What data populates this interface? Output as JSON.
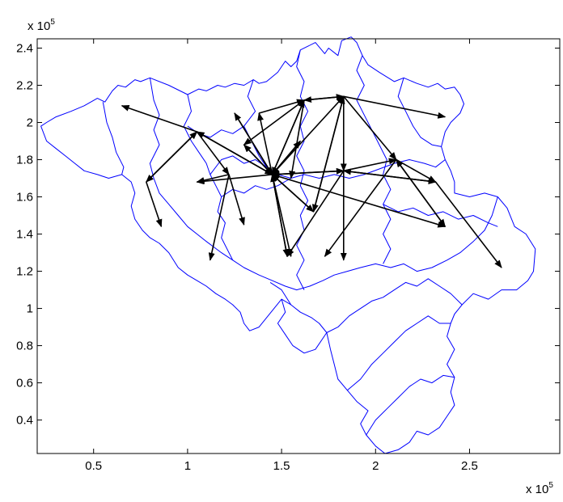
{
  "chart_data": {
    "type": "map-arrows",
    "title": "",
    "xlabel": "",
    "ylabel": "",
    "x_multiplier_label": "x 10",
    "x_multiplier_exp": "5",
    "y_multiplier_label": "x 10",
    "y_multiplier_exp": "5",
    "xlim": [
      0.2,
      2.98
    ],
    "ylim": [
      0.22,
      2.45
    ],
    "xticks": [
      0.5,
      1,
      1.5,
      2,
      2.5
    ],
    "xtick_labels": [
      "0.5",
      "1",
      "1.5",
      "2",
      "2.5"
    ],
    "yticks": [
      0.4,
      0.6,
      0.8,
      1,
      1.2,
      1.4,
      1.6,
      1.8,
      2,
      2.2,
      2.4
    ],
    "ytick_labels": [
      "0.4",
      "0.6",
      "0.8",
      "1",
      "1.2",
      "1.4",
      "1.6",
      "1.8",
      "2",
      "2.2",
      "2.4"
    ],
    "grid": false,
    "boundary_color": "#0000ff",
    "arrow_color": "#000000",
    "boundary_outline": [
      [
        0.22,
        1.98
      ],
      [
        0.25,
        2.0
      ],
      [
        0.3,
        2.03
      ],
      [
        0.38,
        2.06
      ],
      [
        0.45,
        2.09
      ],
      [
        0.52,
        2.13
      ],
      [
        0.56,
        2.11
      ],
      [
        0.6,
        2.17
      ],
      [
        0.63,
        2.2
      ],
      [
        0.67,
        2.19
      ],
      [
        0.72,
        2.23
      ],
      [
        0.75,
        2.22
      ],
      [
        0.8,
        2.24
      ],
      [
        0.9,
        2.2
      ],
      [
        1.0,
        2.15
      ],
      [
        1.06,
        2.18
      ],
      [
        1.1,
        2.17
      ],
      [
        1.16,
        2.2
      ],
      [
        1.2,
        2.19
      ],
      [
        1.25,
        2.21
      ],
      [
        1.3,
        2.2
      ],
      [
        1.35,
        2.23
      ],
      [
        1.38,
        2.21
      ],
      [
        1.42,
        2.22
      ],
      [
        1.48,
        2.27
      ],
      [
        1.52,
        2.33
      ],
      [
        1.55,
        2.3
      ],
      [
        1.58,
        2.33
      ],
      [
        1.6,
        2.39
      ],
      [
        1.64,
        2.41
      ],
      [
        1.68,
        2.43
      ],
      [
        1.73,
        2.37
      ],
      [
        1.75,
        2.4
      ],
      [
        1.8,
        2.36
      ],
      [
        1.82,
        2.44
      ],
      [
        1.87,
        2.46
      ],
      [
        1.9,
        2.43
      ],
      [
        1.93,
        2.36
      ],
      [
        1.96,
        2.31
      ],
      [
        2.02,
        2.27
      ],
      [
        2.1,
        2.22
      ],
      [
        2.15,
        2.24
      ],
      [
        2.22,
        2.21
      ],
      [
        2.28,
        2.19
      ],
      [
        2.33,
        2.21
      ],
      [
        2.37,
        2.18
      ],
      [
        2.42,
        2.19
      ],
      [
        2.45,
        2.15
      ],
      [
        2.47,
        2.1
      ],
      [
        2.45,
        2.05
      ],
      [
        2.4,
        2.0
      ],
      [
        2.37,
        1.95
      ],
      [
        2.35,
        1.87
      ],
      [
        2.37,
        1.8
      ],
      [
        2.4,
        1.74
      ],
      [
        2.42,
        1.68
      ],
      [
        2.42,
        1.62
      ],
      [
        2.5,
        1.6
      ],
      [
        2.58,
        1.62
      ],
      [
        2.65,
        1.6
      ],
      [
        2.7,
        1.54
      ],
      [
        2.74,
        1.44
      ],
      [
        2.8,
        1.4
      ],
      [
        2.85,
        1.32
      ],
      [
        2.84,
        1.2
      ],
      [
        2.81,
        1.15
      ],
      [
        2.75,
        1.1
      ],
      [
        2.67,
        1.1
      ],
      [
        2.6,
        1.05
      ],
      [
        2.52,
        1.08
      ],
      [
        2.46,
        1.02
      ],
      [
        2.42,
        0.97
      ],
      [
        2.4,
        0.92
      ],
      [
        2.38,
        0.85
      ],
      [
        2.42,
        0.78
      ],
      [
        2.38,
        0.7
      ],
      [
        2.42,
        0.63
      ],
      [
        2.4,
        0.55
      ],
      [
        2.42,
        0.48
      ],
      [
        2.38,
        0.42
      ],
      [
        2.34,
        0.36
      ],
      [
        2.28,
        0.32
      ],
      [
        2.22,
        0.34
      ],
      [
        2.18,
        0.28
      ],
      [
        2.12,
        0.24
      ],
      [
        2.05,
        0.22
      ],
      [
        2.0,
        0.26
      ],
      [
        1.95,
        0.32
      ],
      [
        1.92,
        0.38
      ],
      [
        1.96,
        0.45
      ],
      [
        1.9,
        0.5
      ],
      [
        1.85,
        0.56
      ],
      [
        1.8,
        0.62
      ],
      [
        1.78,
        0.7
      ],
      [
        1.76,
        0.78
      ],
      [
        1.74,
        0.87
      ],
      [
        1.7,
        0.92
      ],
      [
        1.66,
        0.95
      ],
      [
        1.6,
        0.98
      ],
      [
        1.55,
        1.02
      ],
      [
        1.5,
        1.05
      ],
      [
        1.46,
        1.0
      ],
      [
        1.42,
        0.95
      ],
      [
        1.38,
        0.9
      ],
      [
        1.33,
        0.88
      ],
      [
        1.3,
        0.92
      ],
      [
        1.28,
        0.98
      ],
      [
        1.24,
        1.02
      ],
      [
        1.2,
        1.05
      ],
      [
        1.15,
        1.08
      ],
      [
        1.1,
        1.12
      ],
      [
        1.05,
        1.15
      ],
      [
        1.0,
        1.18
      ],
      [
        0.95,
        1.22
      ],
      [
        0.9,
        1.3
      ],
      [
        0.85,
        1.35
      ],
      [
        0.8,
        1.38
      ],
      [
        0.76,
        1.42
      ],
      [
        0.72,
        1.48
      ],
      [
        0.7,
        1.55
      ],
      [
        0.72,
        1.62
      ],
      [
        0.7,
        1.68
      ],
      [
        0.65,
        1.72
      ],
      [
        0.58,
        1.7
      ],
      [
        0.52,
        1.72
      ],
      [
        0.45,
        1.74
      ],
      [
        0.4,
        1.78
      ],
      [
        0.35,
        1.82
      ],
      [
        0.3,
        1.86
      ],
      [
        0.25,
        1.9
      ],
      [
        0.22,
        1.98
      ]
    ],
    "internal_boundaries": [
      [
        [
          0.55,
          2.11
        ],
        [
          0.57,
          2.0
        ],
        [
          0.6,
          1.92
        ],
        [
          0.62,
          1.84
        ],
        [
          0.66,
          1.76
        ],
        [
          0.65,
          1.72
        ]
      ],
      [
        [
          0.8,
          2.24
        ],
        [
          0.82,
          2.12
        ],
        [
          0.85,
          2.04
        ],
        [
          0.82,
          1.96
        ],
        [
          0.85,
          1.88
        ],
        [
          0.8,
          1.78
        ],
        [
          0.82,
          1.7
        ],
        [
          0.85,
          1.62
        ],
        [
          0.9,
          1.56
        ],
        [
          0.95,
          1.5
        ],
        [
          1.0,
          1.44
        ],
        [
          1.05,
          1.4
        ],
        [
          1.1,
          1.36
        ],
        [
          1.18,
          1.3
        ],
        [
          1.24,
          1.26
        ],
        [
          1.3,
          1.22
        ],
        [
          1.38,
          1.18
        ],
        [
          1.45,
          1.15
        ],
        [
          1.52,
          1.12
        ],
        [
          1.58,
          1.1
        ],
        [
          1.65,
          1.12
        ],
        [
          1.72,
          1.15
        ],
        [
          1.78,
          1.18
        ],
        [
          1.85,
          1.2
        ],
        [
          1.92,
          1.22
        ],
        [
          2.0,
          1.24
        ],
        [
          2.08,
          1.22
        ],
        [
          2.15,
          1.24
        ],
        [
          2.22,
          1.2
        ],
        [
          2.3,
          1.22
        ],
        [
          2.38,
          1.26
        ],
        [
          2.45,
          1.3
        ],
        [
          2.52,
          1.36
        ],
        [
          2.58,
          1.42
        ],
        [
          2.62,
          1.5
        ],
        [
          2.65,
          1.6
        ]
      ],
      [
        [
          1.0,
          2.15
        ],
        [
          1.02,
          2.06
        ],
        [
          0.98,
          1.98
        ],
        [
          1.02,
          1.9
        ],
        [
          1.06,
          1.84
        ],
        [
          1.1,
          1.78
        ],
        [
          1.12,
          1.72
        ],
        [
          1.15,
          1.66
        ],
        [
          1.18,
          1.6
        ],
        [
          1.16,
          1.52
        ],
        [
          1.2,
          1.46
        ],
        [
          1.18,
          1.38
        ],
        [
          1.24,
          1.26
        ]
      ],
      [
        [
          1.35,
          2.23
        ],
        [
          1.32,
          2.14
        ],
        [
          1.36,
          2.06
        ],
        [
          1.3,
          1.98
        ],
        [
          1.34,
          1.9
        ],
        [
          1.38,
          1.82
        ],
        [
          1.42,
          1.76
        ],
        [
          1.48,
          1.72
        ],
        [
          1.55,
          1.7
        ],
        [
          1.62,
          1.72
        ],
        [
          1.7,
          1.7
        ],
        [
          1.78,
          1.72
        ],
        [
          1.86,
          1.7
        ],
        [
          1.94,
          1.72
        ],
        [
          2.02,
          1.75
        ],
        [
          2.1,
          1.78
        ],
        [
          2.18,
          1.8
        ],
        [
          2.26,
          1.78
        ],
        [
          2.32,
          1.76
        ],
        [
          2.37,
          1.8
        ]
      ],
      [
        [
          1.6,
          2.39
        ],
        [
          1.58,
          2.3
        ],
        [
          1.62,
          2.22
        ],
        [
          1.6,
          2.14
        ],
        [
          1.64,
          2.06
        ],
        [
          1.6,
          1.98
        ],
        [
          1.62,
          1.9
        ],
        [
          1.58,
          1.82
        ],
        [
          1.62,
          1.74
        ],
        [
          1.6,
          1.66
        ],
        [
          1.64,
          1.58
        ],
        [
          1.6,
          1.5
        ],
        [
          1.62,
          1.42
        ],
        [
          1.58,
          1.34
        ],
        [
          1.62,
          1.26
        ],
        [
          1.58,
          1.18
        ],
        [
          1.62,
          1.1
        ]
      ],
      [
        [
          1.93,
          2.36
        ],
        [
          1.9,
          2.28
        ],
        [
          1.94,
          2.2
        ],
        [
          1.9,
          2.12
        ],
        [
          1.94,
          2.04
        ],
        [
          1.98,
          1.96
        ],
        [
          2.02,
          1.88
        ],
        [
          2.06,
          1.8
        ],
        [
          2.04,
          1.72
        ],
        [
          2.08,
          1.64
        ],
        [
          2.04,
          1.56
        ],
        [
          2.08,
          1.48
        ],
        [
          2.04,
          1.4
        ],
        [
          2.08,
          1.32
        ],
        [
          2.04,
          1.24
        ]
      ],
      [
        [
          2.15,
          2.24
        ],
        [
          2.12,
          2.14
        ],
        [
          2.16,
          2.06
        ],
        [
          2.2,
          1.98
        ],
        [
          2.24,
          1.92
        ],
        [
          2.3,
          1.88
        ],
        [
          2.35,
          1.87
        ]
      ],
      [
        [
          1.5,
          1.05
        ],
        [
          1.52,
          0.98
        ],
        [
          1.48,
          0.92
        ],
        [
          1.52,
          0.86
        ],
        [
          1.56,
          0.8
        ],
        [
          1.62,
          0.76
        ],
        [
          1.68,
          0.78
        ],
        [
          1.74,
          0.87
        ]
      ],
      [
        [
          1.55,
          1.02
        ],
        [
          1.5,
          1.1
        ],
        [
          1.44,
          1.14
        ]
      ],
      [
        [
          1.74,
          0.87
        ],
        [
          1.8,
          0.9
        ],
        [
          1.86,
          0.96
        ],
        [
          1.92,
          1.0
        ],
        [
          1.98,
          1.04
        ],
        [
          2.04,
          1.06
        ],
        [
          2.1,
          1.1
        ],
        [
          2.16,
          1.14
        ],
        [
          2.22,
          1.12
        ],
        [
          2.28,
          1.16
        ],
        [
          2.34,
          1.12
        ],
        [
          2.4,
          1.08
        ],
        [
          2.46,
          1.02
        ]
      ],
      [
        [
          1.95,
          0.32
        ],
        [
          2.0,
          0.4
        ],
        [
          2.06,
          0.46
        ],
        [
          2.12,
          0.52
        ],
        [
          2.18,
          0.58
        ],
        [
          2.24,
          0.62
        ],
        [
          2.3,
          0.6
        ],
        [
          2.36,
          0.64
        ],
        [
          2.42,
          0.63
        ]
      ],
      [
        [
          1.85,
          0.56
        ],
        [
          1.92,
          0.62
        ],
        [
          1.98,
          0.7
        ],
        [
          2.04,
          0.76
        ],
        [
          2.1,
          0.82
        ],
        [
          2.16,
          0.88
        ],
        [
          2.22,
          0.92
        ],
        [
          2.28,
          0.96
        ],
        [
          2.34,
          0.92
        ],
        [
          2.4,
          0.92
        ]
      ],
      [
        [
          1.18,
          1.6
        ],
        [
          1.24,
          1.64
        ],
        [
          1.3,
          1.62
        ],
        [
          1.36,
          1.66
        ],
        [
          1.42,
          1.64
        ],
        [
          1.48,
          1.66
        ],
        [
          1.55,
          1.7
        ]
      ],
      [
        [
          1.3,
          1.98
        ],
        [
          1.24,
          1.94
        ],
        [
          1.18,
          1.96
        ],
        [
          1.12,
          1.92
        ],
        [
          1.06,
          1.94
        ],
        [
          1.0,
          1.98
        ]
      ],
      [
        [
          1.42,
          1.76
        ],
        [
          1.36,
          1.8
        ],
        [
          1.3,
          1.78
        ],
        [
          1.24,
          1.82
        ],
        [
          1.18,
          1.8
        ],
        [
          1.12,
          1.72
        ]
      ],
      [
        [
          2.04,
          1.56
        ],
        [
          2.12,
          1.52
        ],
        [
          2.2,
          1.54
        ],
        [
          2.28,
          1.5
        ],
        [
          2.36,
          1.52
        ],
        [
          2.44,
          1.48
        ],
        [
          2.52,
          1.5
        ],
        [
          2.6,
          1.46
        ],
        [
          2.65,
          1.44
        ]
      ]
    ],
    "arrows": [
      [
        1.45,
        1.72,
        1.05,
        1.95
      ],
      [
        1.05,
        1.95,
        0.65,
        2.09
      ],
      [
        1.05,
        1.95,
        0.78,
        1.68
      ],
      [
        0.78,
        1.68,
        0.86,
        1.44
      ],
      [
        0.78,
        1.68,
        1.05,
        1.95
      ],
      [
        1.05,
        1.95,
        1.22,
        1.72
      ],
      [
        1.22,
        1.72,
        1.05,
        1.68
      ],
      [
        1.45,
        1.72,
        1.05,
        1.68
      ],
      [
        1.22,
        1.72,
        1.3,
        1.45
      ],
      [
        1.22,
        1.72,
        1.12,
        1.26
      ],
      [
        1.05,
        1.95,
        1.45,
        1.72
      ],
      [
        1.45,
        1.72,
        1.25,
        2.05
      ],
      [
        1.25,
        2.05,
        1.45,
        1.72
      ],
      [
        1.45,
        1.72,
        1.3,
        1.88
      ],
      [
        1.3,
        1.88,
        1.45,
        1.72
      ],
      [
        1.45,
        1.72,
        1.62,
        2.12
      ],
      [
        1.62,
        2.12,
        1.45,
        1.72
      ],
      [
        1.45,
        1.72,
        1.83,
        2.14
      ],
      [
        1.83,
        2.14,
        1.62,
        2.12
      ],
      [
        1.62,
        2.12,
        1.83,
        2.14
      ],
      [
        1.83,
        2.14,
        2.37,
        2.03
      ],
      [
        1.83,
        2.14,
        2.11,
        1.8
      ],
      [
        2.11,
        1.8,
        2.37,
        1.44
      ],
      [
        2.37,
        1.44,
        2.11,
        1.8
      ],
      [
        2.11,
        1.8,
        2.32,
        1.68
      ],
      [
        2.32,
        1.68,
        2.67,
        1.22
      ],
      [
        2.32,
        1.68,
        1.83,
        1.74
      ],
      [
        1.83,
        1.74,
        2.32,
        1.68
      ],
      [
        1.83,
        1.74,
        1.45,
        1.72
      ],
      [
        1.45,
        1.72,
        1.83,
        1.74
      ],
      [
        1.83,
        1.74,
        1.83,
        1.26
      ],
      [
        1.83,
        1.74,
        1.53,
        1.28
      ],
      [
        1.45,
        1.72,
        1.53,
        1.28
      ],
      [
        1.53,
        1.28,
        1.45,
        1.72
      ],
      [
        1.45,
        1.72,
        1.67,
        1.52
      ],
      [
        1.67,
        1.52,
        1.83,
        2.14
      ],
      [
        1.67,
        1.52,
        1.45,
        1.72
      ],
      [
        1.83,
        2.14,
        1.67,
        1.52
      ],
      [
        1.83,
        2.14,
        1.83,
        1.74
      ],
      [
        1.83,
        1.74,
        2.11,
        1.8
      ],
      [
        2.11,
        1.8,
        1.73,
        1.28
      ],
      [
        1.45,
        1.72,
        2.37,
        1.44
      ],
      [
        1.45,
        1.72,
        1.38,
        2.05
      ],
      [
        1.38,
        2.05,
        1.62,
        2.12
      ],
      [
        1.62,
        2.12,
        1.3,
        1.88
      ],
      [
        1.45,
        1.72,
        1.6,
        1.9
      ],
      [
        1.6,
        1.9,
        1.45,
        1.72
      ],
      [
        1.62,
        2.12,
        1.55,
        1.7
      ],
      [
        1.45,
        1.72,
        1.55,
        1.28
      ]
    ]
  }
}
